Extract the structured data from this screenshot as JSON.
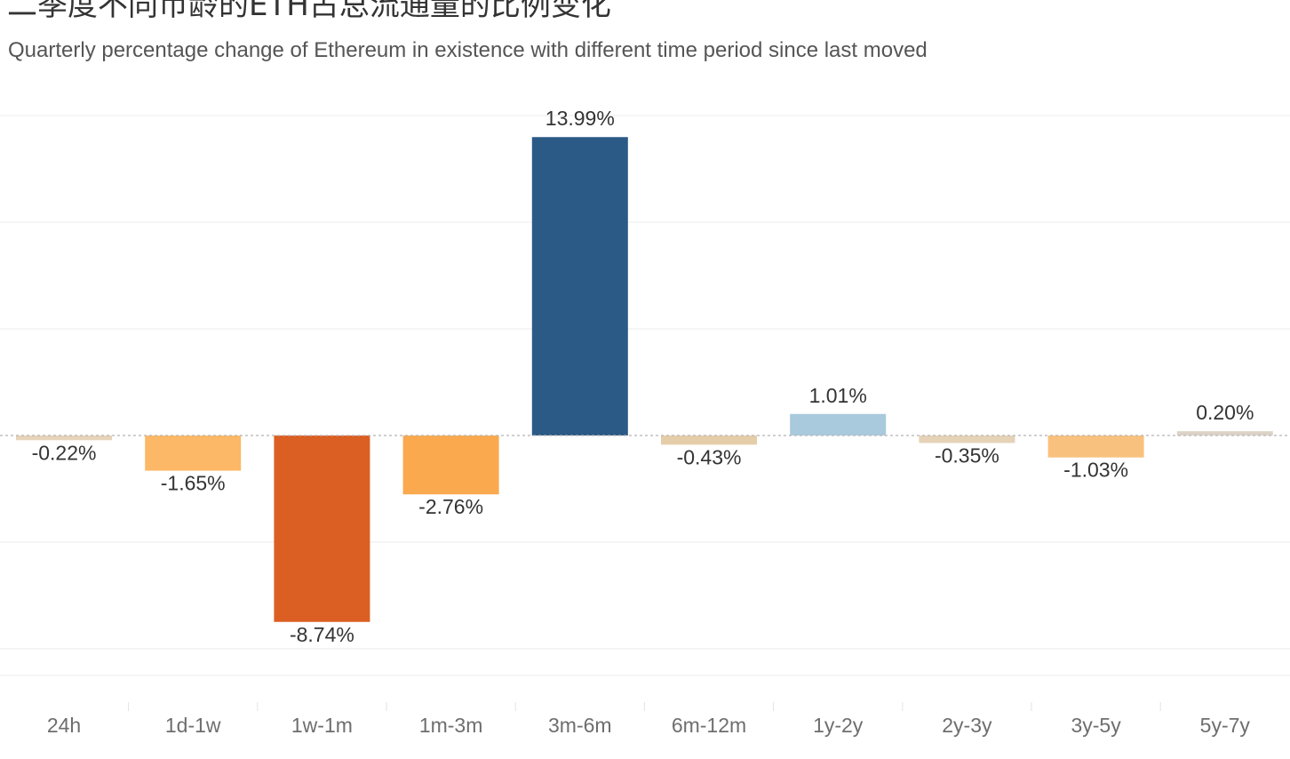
{
  "title": "二季度不同币龄的ETH占总流通量的比例变化",
  "subtitle": "Quarterly percentage change of Ethereum in existence with different time period since last moved",
  "chart_data": {
    "type": "bar",
    "categories": [
      "24h",
      "1d-1w",
      "1w-1m",
      "1m-3m",
      "3m-6m",
      "6m-12m",
      "1y-2y",
      "2y-3y",
      "3y-5y",
      "5y-7y"
    ],
    "values": [
      -0.22,
      -1.65,
      -8.74,
      -2.76,
      13.99,
      -0.43,
      1.01,
      -0.35,
      -1.03,
      0.2
    ],
    "value_labels": [
      "-0.22%",
      "-1.65%",
      "-8.74%",
      "-2.76%",
      "13.99%",
      "-0.43%",
      "1.01%",
      "-0.35%",
      "-1.03%",
      "0.20%"
    ],
    "colors": [
      "#e6d3b9",
      "#fcb866",
      "#db5f23",
      "#faa94f",
      "#2c5a86",
      "#e6cda9",
      "#a9cadd",
      "#e6d2b6",
      "#f9c17e",
      "#dcd3c6"
    ],
    "ylim": [
      -11.25,
      15
    ],
    "grid": true,
    "zero_line": "dashed",
    "xlabel": "",
    "ylabel": ""
  }
}
